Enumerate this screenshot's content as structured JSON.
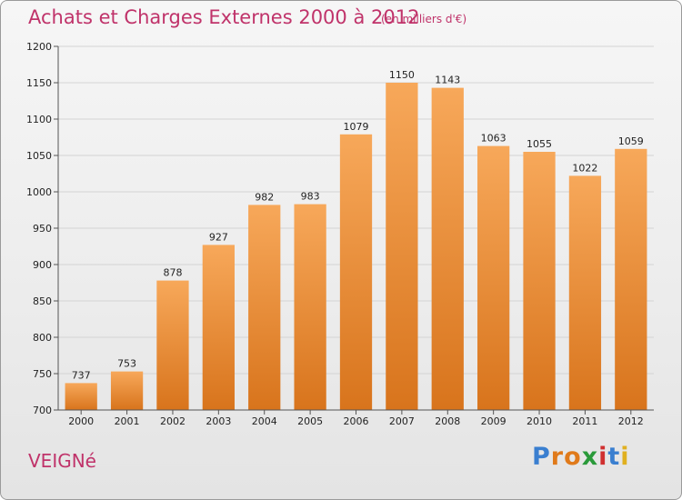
{
  "header": {
    "title": "Achats et Charges Externes 2000 à 2012",
    "subtitle": "(en milliers d'€)"
  },
  "footer": {
    "place": "VEIGNé",
    "logo": {
      "letters": [
        "P",
        "r",
        "o",
        "x",
        "i",
        "t",
        "i"
      ],
      "colors": [
        "#3a7fd0",
        "#e07a1a",
        "#e07a1a",
        "#2a9a3a",
        "#d03030",
        "#3a7fd0",
        "#e0b020"
      ]
    }
  },
  "colors": {
    "bar_top": "#f7a85a",
    "bar_bottom": "#d8741c",
    "title": "#c0336a"
  },
  "chart_data": {
    "type": "bar",
    "categories": [
      "2000",
      "2001",
      "2002",
      "2003",
      "2004",
      "2005",
      "2006",
      "2007",
      "2008",
      "2009",
      "2010",
      "2011",
      "2012"
    ],
    "values": [
      737,
      753,
      878,
      927,
      982,
      983,
      1079,
      1150,
      1143,
      1063,
      1055,
      1022,
      1059
    ],
    "title": "Achats et Charges Externes 2000 à 2012",
    "ylim": [
      700,
      1200
    ],
    "yticks": [
      700,
      750,
      800,
      850,
      900,
      950,
      1000,
      1050,
      1100,
      1150,
      1200
    ],
    "grid": true
  }
}
